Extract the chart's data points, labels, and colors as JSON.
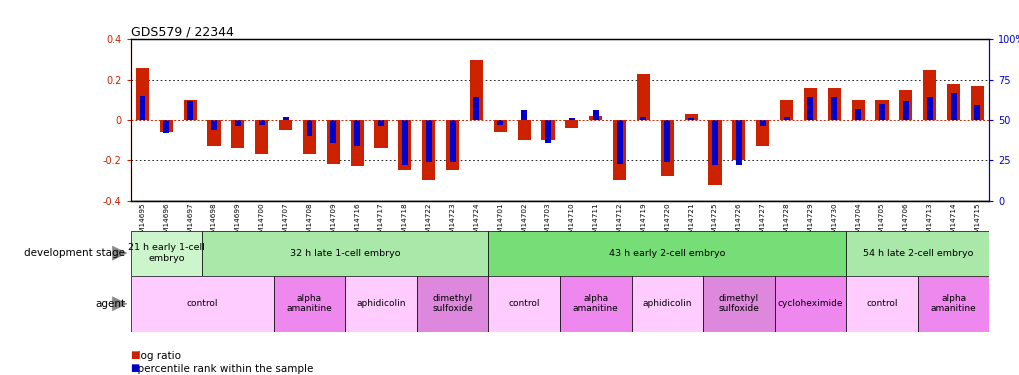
{
  "title": "GDS579 / 22344",
  "samples": [
    "GSM14695",
    "GSM14696",
    "GSM14697",
    "GSM14698",
    "GSM14699",
    "GSM14700",
    "GSM14707",
    "GSM14708",
    "GSM14709",
    "GSM14716",
    "GSM14717",
    "GSM14718",
    "GSM14722",
    "GSM14723",
    "GSM14724",
    "GSM14701",
    "GSM14702",
    "GSM14703",
    "GSM14710",
    "GSM14711",
    "GSM14712",
    "GSM14719",
    "GSM14720",
    "GSM14721",
    "GSM14725",
    "GSM14726",
    "GSM14727",
    "GSM14728",
    "GSM14729",
    "GSM14730",
    "GSM14704",
    "GSM14705",
    "GSM14706",
    "GSM14713",
    "GSM14714",
    "GSM14715"
  ],
  "log_ratio": [
    0.26,
    -0.06,
    0.1,
    -0.13,
    -0.14,
    -0.17,
    -0.05,
    -0.17,
    -0.22,
    -0.23,
    -0.14,
    -0.25,
    -0.3,
    -0.25,
    0.3,
    -0.06,
    -0.1,
    -0.1,
    -0.04,
    0.02,
    -0.3,
    0.23,
    -0.28,
    0.03,
    -0.32,
    -0.2,
    -0.13,
    0.1,
    0.16,
    0.16,
    0.1,
    0.1,
    0.15,
    0.25,
    0.18,
    0.17
  ],
  "percentile_raw": [
    65,
    42,
    62,
    44,
    46,
    47,
    52,
    40,
    36,
    34,
    46,
    22,
    24,
    24,
    64,
    47,
    56,
    36,
    51,
    56,
    23,
    52,
    24,
    51,
    22,
    22,
    46,
    52,
    64,
    64,
    57,
    60,
    62,
    64,
    67,
    59
  ],
  "dev_stage_groups": [
    {
      "label": "21 h early 1-cell\nembryо",
      "start": 0,
      "end": 3,
      "color": "#ccf5cc"
    },
    {
      "label": "32 h late 1-cell embryo",
      "start": 3,
      "end": 15,
      "color": "#aae8aa"
    },
    {
      "label": "43 h early 2-cell embryo",
      "start": 15,
      "end": 30,
      "color": "#77dd77"
    },
    {
      "label": "54 h late 2-cell embryo",
      "start": 30,
      "end": 36,
      "color": "#aae8aa"
    }
  ],
  "agent_groups": [
    {
      "label": "control",
      "start": 0,
      "end": 6,
      "color": "#ffccff"
    },
    {
      "label": "alpha\namanitine",
      "start": 6,
      "end": 9,
      "color": "#ee88ee"
    },
    {
      "label": "aphidicolin",
      "start": 9,
      "end": 12,
      "color": "#ffccff"
    },
    {
      "label": "dimethyl\nsulfoxide",
      "start": 12,
      "end": 15,
      "color": "#dd88dd"
    },
    {
      "label": "control",
      "start": 15,
      "end": 18,
      "color": "#ffccff"
    },
    {
      "label": "alpha\namanitine",
      "start": 18,
      "end": 21,
      "color": "#ee88ee"
    },
    {
      "label": "aphidicolin",
      "start": 21,
      "end": 24,
      "color": "#ffccff"
    },
    {
      "label": "dimethyl\nsulfoxide",
      "start": 24,
      "end": 27,
      "color": "#dd88dd"
    },
    {
      "label": "cycloheximide",
      "start": 27,
      "end": 30,
      "color": "#ee88ee"
    },
    {
      "label": "control",
      "start": 30,
      "end": 33,
      "color": "#ffccff"
    },
    {
      "label": "alpha\namanitine",
      "start": 33,
      "end": 36,
      "color": "#ee88ee"
    }
  ],
  "ylim": [
    -0.4,
    0.4
  ],
  "yticks_left": [
    -0.4,
    -0.2,
    0.0,
    0.2,
    0.4
  ],
  "ytick_labels_left": [
    "-0.4",
    "-0.2",
    "0",
    "0.2",
    "0.4"
  ],
  "ytick_labels_right": [
    "0",
    "25",
    "50",
    "75",
    "100%"
  ],
  "bar_color_red": "#cc2200",
  "bar_color_blue": "#0000cc",
  "bg_color": "#ffffff",
  "zero_line_color": "#cc2200",
  "label_bg_color": "#dddddd"
}
